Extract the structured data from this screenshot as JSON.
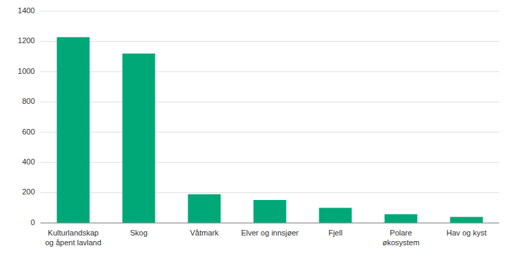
{
  "chart_data": {
    "type": "bar",
    "categories": [
      "Kulturlandskap\nog åpent lavland",
      "Skog",
      "Våtmark",
      "Elver og innsjøer",
      "Fjell",
      "Polare\nøkosystem",
      "Hav og kyst"
    ],
    "values": [
      1228,
      1120,
      190,
      152,
      100,
      58,
      40
    ],
    "color": "#00a878",
    "ylim": [
      0,
      1400
    ],
    "yticks": [
      0,
      200,
      400,
      600,
      800,
      1000,
      1200,
      1400
    ],
    "grid": true
  }
}
